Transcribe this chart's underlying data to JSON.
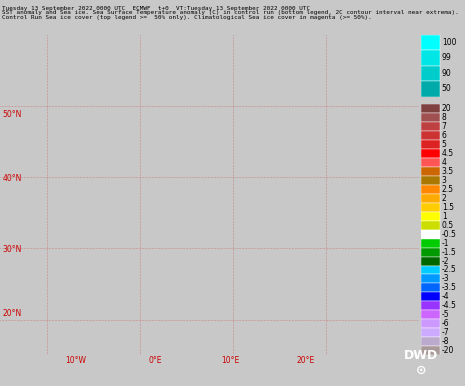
{
  "title_line1": "Tuesday 13 September 2022 0000 UTC  ECMWF  t+0  VT:Tuesday 13 September 2022 0000 UTC",
  "title_line2": "SST anomaly and Sea ice. Sea Surface Temperature anomaly (C) in control run (bottom legend, 2C contour interval near extrema).",
  "title_line3": "Control Run Sea ice cover (top legend >=  50% only). Climatological Sea ice cover in magenta (>= 50%).",
  "fig_width": 4.65,
  "fig_height": 3.86,
  "dpi": 100,
  "legend_top_labels": [
    "100",
    "99",
    "90",
    "50"
  ],
  "legend_top_colors": [
    "#00FFFF",
    "#00E5E5",
    "#00CCCC",
    "#00AAAA"
  ],
  "legend_bottom_labels": [
    "20",
    "8",
    "7",
    "6",
    "5",
    "4.5",
    "4",
    "3.5",
    "3",
    "2.5",
    "2",
    "1.5",
    "1",
    "0.5",
    "-0.5",
    "-1",
    "-1.5",
    "-2",
    "-2.5",
    "-3",
    "-3.5",
    "-4",
    "-4.5",
    "-5",
    "-6",
    "-7",
    "-8",
    "-20"
  ],
  "legend_bottom_colors": [
    "#7F4040",
    "#A05050",
    "#BF4040",
    "#CC3333",
    "#DD2222",
    "#FF0000",
    "#FF5555",
    "#CC6600",
    "#AA7700",
    "#FF8800",
    "#FFAA00",
    "#FFCC00",
    "#FFFF00",
    "#CCDD00",
    "#FFFFFF",
    "#00CC00",
    "#009900",
    "#006600",
    "#00CCFF",
    "#0099FF",
    "#0066FF",
    "#0000FF",
    "#9933FF",
    "#CC66FF",
    "#CC99FF",
    "#CCAAFF",
    "#BBAACC",
    "#AA9999"
  ],
  "map_bg_color": "#C8C8C8",
  "dwd_bg_color": "#0000AA",
  "bottom_axis_labels": [
    "10°W",
    "0°E",
    "10°E",
    "20°E"
  ],
  "left_axis_labels": [
    "20°N",
    "30°N",
    "40°N",
    "50°N"
  ],
  "axis_label_color": "#CC0000"
}
